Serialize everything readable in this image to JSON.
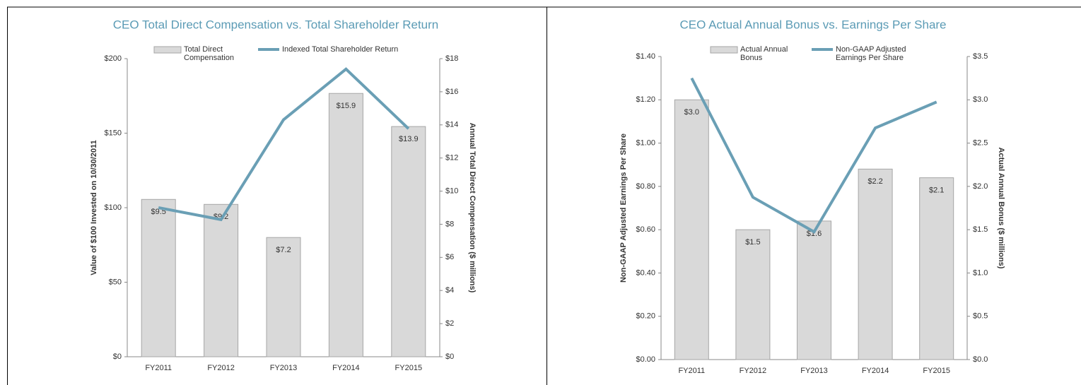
{
  "chart_data": [
    {
      "type": "bar_line",
      "title": "CEO Total Direct Compensation vs. Total Shareholder Return",
      "ylabel": "Value of $100 Invested on 10/30/2011",
      "y2label": "Annual Total Direct Compensation ($ millions)",
      "categories": [
        "FY2011",
        "FY2012",
        "FY2013",
        "FY2014",
        "FY2015"
      ],
      "series": [
        {
          "name": "Total Direct Compensation",
          "type": "bar",
          "axis": "y2",
          "color": "#d9d9d9",
          "values": [
            9.5,
            9.2,
            7.2,
            15.9,
            13.9
          ],
          "value_labels": [
            "$9.5",
            "$9.2",
            "$7.2",
            "$15.9",
            "$13.9"
          ]
        },
        {
          "name": "Indexed Total Shareholder Return",
          "type": "line",
          "axis": "y",
          "color": "#6a9fb5",
          "values": [
            100,
            92,
            159,
            193,
            153
          ]
        }
      ],
      "ylim": [
        0,
        200
      ],
      "yticks": [
        {
          "value": 0,
          "label": "$0"
        },
        {
          "value": 50,
          "label": "$50"
        },
        {
          "value": 100,
          "label": "$100"
        },
        {
          "value": 150,
          "label": "$150"
        },
        {
          "value": 200,
          "label": "$200"
        }
      ],
      "y2lim": [
        0,
        18
      ],
      "y2ticks": [
        {
          "value": 0,
          "label": "$0"
        },
        {
          "value": 2,
          "label": "$2"
        },
        {
          "value": 4,
          "label": "$4"
        },
        {
          "value": 6,
          "label": "$6"
        },
        {
          "value": 8,
          "label": "$8"
        },
        {
          "value": 10,
          "label": "$10"
        },
        {
          "value": 12,
          "label": "$12"
        },
        {
          "value": 14,
          "label": "$14"
        },
        {
          "value": 16,
          "label": "$16"
        },
        {
          "value": 18,
          "label": "$18"
        }
      ]
    },
    {
      "type": "bar_line",
      "title": "CEO Actual Annual Bonus vs. Earnings Per Share",
      "ylabel": "Non-GAAP Adjusted Earnings Per Share",
      "y2label": "Actual Annual Bonus ($ millions)",
      "categories": [
        "FY2011",
        "FY2012",
        "FY2013",
        "FY2014",
        "FY2015"
      ],
      "series": [
        {
          "name": "Actual Annual Bonus",
          "type": "bar",
          "axis": "y2",
          "color": "#d9d9d9",
          "values": [
            3.0,
            1.5,
            1.6,
            2.2,
            2.1
          ],
          "value_labels": [
            "$3.0",
            "$1.5",
            "$1.6",
            "$2.2",
            "$2.1"
          ]
        },
        {
          "name": "Non-GAAP Adjusted Earnings Per Share",
          "type": "line",
          "axis": "y",
          "color": "#6a9fb5",
          "values": [
            1.3,
            0.75,
            0.59,
            1.07,
            1.19
          ]
        }
      ],
      "ylim": [
        0,
        1.4
      ],
      "yticks": [
        {
          "value": 0,
          "label": "$0.00"
        },
        {
          "value": 0.2,
          "label": "$0.20"
        },
        {
          "value": 0.4,
          "label": "$0.40"
        },
        {
          "value": 0.6,
          "label": "$0.60"
        },
        {
          "value": 0.8,
          "label": "$0.80"
        },
        {
          "value": 1.0,
          "label": "$1.00"
        },
        {
          "value": 1.2,
          "label": "$1.20"
        },
        {
          "value": 1.4,
          "label": "$1.40"
        }
      ],
      "y2lim": [
        0,
        3.5
      ],
      "y2ticks": [
        {
          "value": 0,
          "label": "$0.0"
        },
        {
          "value": 0.5,
          "label": "$0.5"
        },
        {
          "value": 1.0,
          "label": "$1.0"
        },
        {
          "value": 1.5,
          "label": "$1.5"
        },
        {
          "value": 2.0,
          "label": "$2.0"
        },
        {
          "value": 2.5,
          "label": "$2.5"
        },
        {
          "value": 3.0,
          "label": "$3.0"
        },
        {
          "value": 3.5,
          "label": "$3.5"
        }
      ]
    }
  ]
}
